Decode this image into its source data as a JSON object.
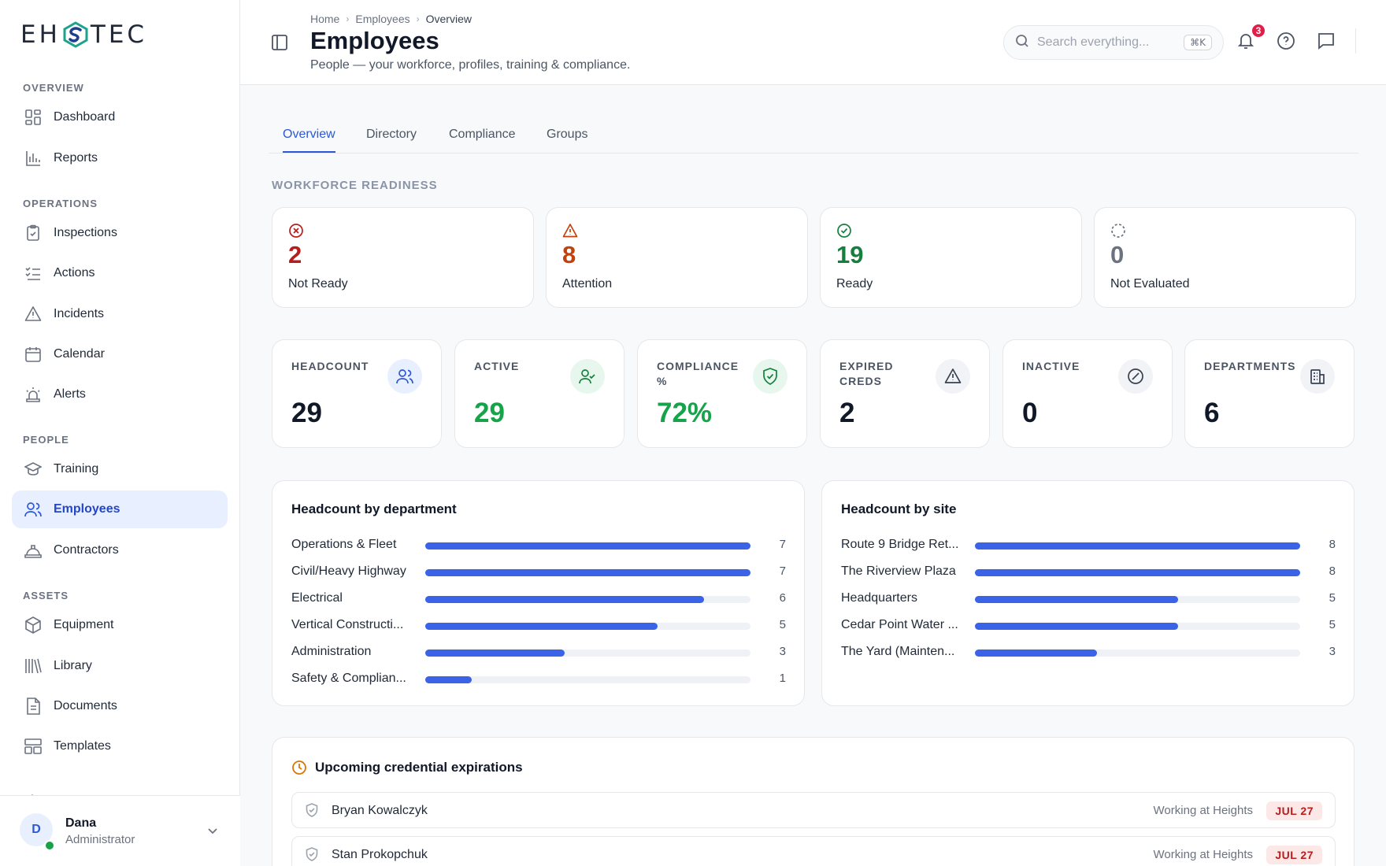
{
  "brand": {
    "prefix": "EH",
    "suffix": "TEC",
    "mark_colors": [
      "#1ea38a",
      "#1f3f8f"
    ]
  },
  "sidebar": {
    "sections": [
      {
        "label": "OVERVIEW",
        "items": [
          {
            "label": "Dashboard",
            "icon": "dashboard-icon"
          },
          {
            "label": "Reports",
            "icon": "bar-chart-icon"
          }
        ]
      },
      {
        "label": "OPERATIONS",
        "items": [
          {
            "label": "Inspections",
            "icon": "clipboard-check-icon"
          },
          {
            "label": "Actions",
            "icon": "list-check-icon"
          },
          {
            "label": "Incidents",
            "icon": "warning-icon"
          },
          {
            "label": "Calendar",
            "icon": "calendar-icon"
          },
          {
            "label": "Alerts",
            "icon": "siren-icon"
          }
        ]
      },
      {
        "label": "PEOPLE",
        "items": [
          {
            "label": "Training",
            "icon": "graduation-cap-icon"
          },
          {
            "label": "Employees",
            "icon": "users-icon",
            "active": true
          },
          {
            "label": "Contractors",
            "icon": "hard-hat-icon"
          }
        ]
      },
      {
        "label": "ASSETS",
        "items": [
          {
            "label": "Equipment",
            "icon": "box-icon"
          },
          {
            "label": "Library",
            "icon": "library-icon"
          },
          {
            "label": "Documents",
            "icon": "document-icon"
          },
          {
            "label": "Templates",
            "icon": "templates-icon"
          }
        ]
      }
    ],
    "user": {
      "initial": "D",
      "name": "Dana",
      "role": "Administrator",
      "status_color": "#16a34a"
    }
  },
  "header": {
    "breadcrumbs": [
      "Home",
      "Employees",
      "Overview"
    ],
    "title": "Employees",
    "subtitle": "People — your workforce, profiles, training & compliance.",
    "search_placeholder": "Search everything...",
    "search_shortcut": "⌘K",
    "notification_count": "3"
  },
  "tabs": [
    {
      "label": "Overview",
      "active": true
    },
    {
      "label": "Directory"
    },
    {
      "label": "Compliance"
    },
    {
      "label": "Groups"
    }
  ],
  "readiness": {
    "label": "WORKFORCE READINESS",
    "cards": [
      {
        "value": "2",
        "label": "Not Ready",
        "color": "#b91c1c",
        "icon": "x-circle-icon"
      },
      {
        "value": "8",
        "label": "Attention",
        "color": "#c2410c",
        "icon": "warning-icon"
      },
      {
        "value": "19",
        "label": "Ready",
        "color": "#15803d",
        "icon": "check-circle-icon"
      },
      {
        "value": "0",
        "label": "Not Evaluated",
        "color": "#6b7280",
        "icon": "dashed-circle-icon"
      }
    ]
  },
  "stats": [
    {
      "label": "HEADCOUNT",
      "value": "29",
      "icon": "users-icon",
      "value_color": "#111827",
      "icon_bg": "#e8efff",
      "icon_color": "#2c57d6"
    },
    {
      "label": "ACTIVE",
      "value": "29",
      "icon": "user-check-icon",
      "value_color": "#16a34a",
      "icon_bg": "#e7f7ee",
      "icon_color": "#15803d"
    },
    {
      "label": "COMPLIANCE %",
      "value": "72%",
      "icon": "shield-check-icon",
      "value_color": "#16a34a",
      "icon_bg": "#e7f7ee",
      "icon_color": "#15803d"
    },
    {
      "label": "EXPIRED CREDS",
      "value": "2",
      "icon": "warning-icon",
      "value_color": "#111827",
      "icon_bg": "#f1f3f6",
      "icon_color": "#374151"
    },
    {
      "label": "INACTIVE",
      "value": "0",
      "icon": "slash-circle-icon",
      "value_color": "#111827",
      "icon_bg": "#f1f3f6",
      "icon_color": "#374151"
    },
    {
      "label": "DEPARTMENTS",
      "value": "6",
      "icon": "building-icon",
      "value_color": "#111827",
      "icon_bg": "#f1f3f6",
      "icon_color": "#374151"
    }
  ],
  "chart_data": [
    {
      "type": "bar",
      "title": "Headcount by department",
      "categories": [
        "Operations & Fleet",
        "Civil/Heavy Highway",
        "Electrical",
        "Vertical Constructi...",
        "Administration",
        "Safety & Complian..."
      ],
      "values": [
        7,
        7,
        6,
        5,
        3,
        1
      ],
      "max": 7,
      "color": "#3b63e8"
    },
    {
      "type": "bar",
      "title": "Headcount by site",
      "categories": [
        "Route 9 Bridge Ret...",
        "The Riverview Plaza",
        "Headquarters",
        "Cedar Point Water ...",
        "The Yard (Mainten..."
      ],
      "values": [
        8,
        8,
        5,
        5,
        3
      ],
      "max": 8,
      "color": "#3b63e8"
    }
  ],
  "expirations": {
    "title": "Upcoming credential expirations",
    "rows": [
      {
        "name": "Bryan Kowalczyk",
        "course": "Working at Heights",
        "date": "JUL 27"
      },
      {
        "name": "Stan Prokopchuk",
        "course": "Working at Heights",
        "date": "JUL 27"
      }
    ]
  }
}
